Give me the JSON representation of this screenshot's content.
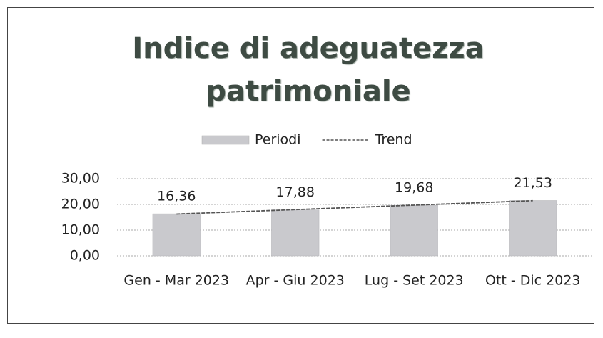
{
  "chart_data": {
    "type": "bar",
    "title": "Indice di adeguatezza patrimoniale",
    "categories": [
      "Gen - Mar 2023",
      "Apr - Giu 2023",
      "Lug - Set 2023",
      "Ott - Dic 2023"
    ],
    "series": [
      {
        "name": "Periodi",
        "type": "bar",
        "color": "#c9c9cd",
        "values": [
          16.36,
          17.88,
          19.68,
          21.53
        ],
        "value_labels": [
          "16,36",
          "17,88",
          "19,68",
          "21,53"
        ]
      },
      {
        "name": "Trend",
        "type": "line",
        "color": "#555555",
        "dashed": true,
        "values": [
          16.26,
          17.99,
          19.73,
          21.46
        ]
      }
    ],
    "ylim": [
      0,
      30
    ],
    "yticks": [
      {
        "value": 0,
        "label": "0,00"
      },
      {
        "value": 10,
        "label": "10,00"
      },
      {
        "value": 20,
        "label": "20,00"
      },
      {
        "value": 30,
        "label": "30,00"
      }
    ],
    "grid": true,
    "legend": "top"
  }
}
